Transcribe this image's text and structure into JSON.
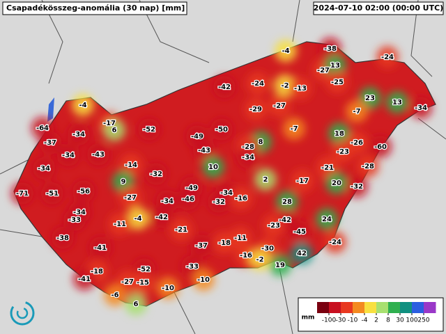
{
  "title": "Csapadékösszeg-anomália (30 nap) [mm]",
  "timestamp": "2024-07-10 02:00 (00:00 UTC)",
  "stations": [
    -4,
    -38,
    -24,
    -27,
    13,
    -25,
    -42,
    -24,
    -2,
    -13,
    23,
    13,
    -34,
    -4,
    -29,
    -27,
    -7,
    -17,
    6,
    -52,
    -50,
    -7,
    18,
    -64,
    -34,
    -49,
    -26,
    8,
    -28,
    -37,
    -60,
    -43,
    -23,
    -43,
    -34,
    -34,
    -14,
    10,
    -21,
    -28,
    -34,
    -32,
    2,
    -17,
    20,
    -32,
    9,
    -49,
    -34,
    -71,
    -51,
    -56,
    -27,
    -16,
    28,
    -34,
    -46,
    -32,
    -34,
    -4,
    -42,
    -42,
    24,
    -33,
    -11,
    -23,
    -45,
    -21,
    -38,
    -11,
    -24,
    -37,
    -18,
    -41,
    -30,
    42,
    -16,
    -2,
    19,
    -52,
    -33,
    -18,
    -41,
    -27,
    -15,
    -10,
    -10,
    -6,
    6
  ],
  "legend": {
    "unit": "mm",
    "ticks": [
      -100,
      -30,
      -10,
      -4,
      2,
      8,
      30,
      100,
      250
    ],
    "colors": [
      "#7a0010",
      "#c81020",
      "#e83820",
      "#f48a20",
      "#f8e040",
      "#a8e070",
      "#30b050",
      "#109080",
      "#2c5ee0",
      "#9a38c8"
    ]
  }
}
